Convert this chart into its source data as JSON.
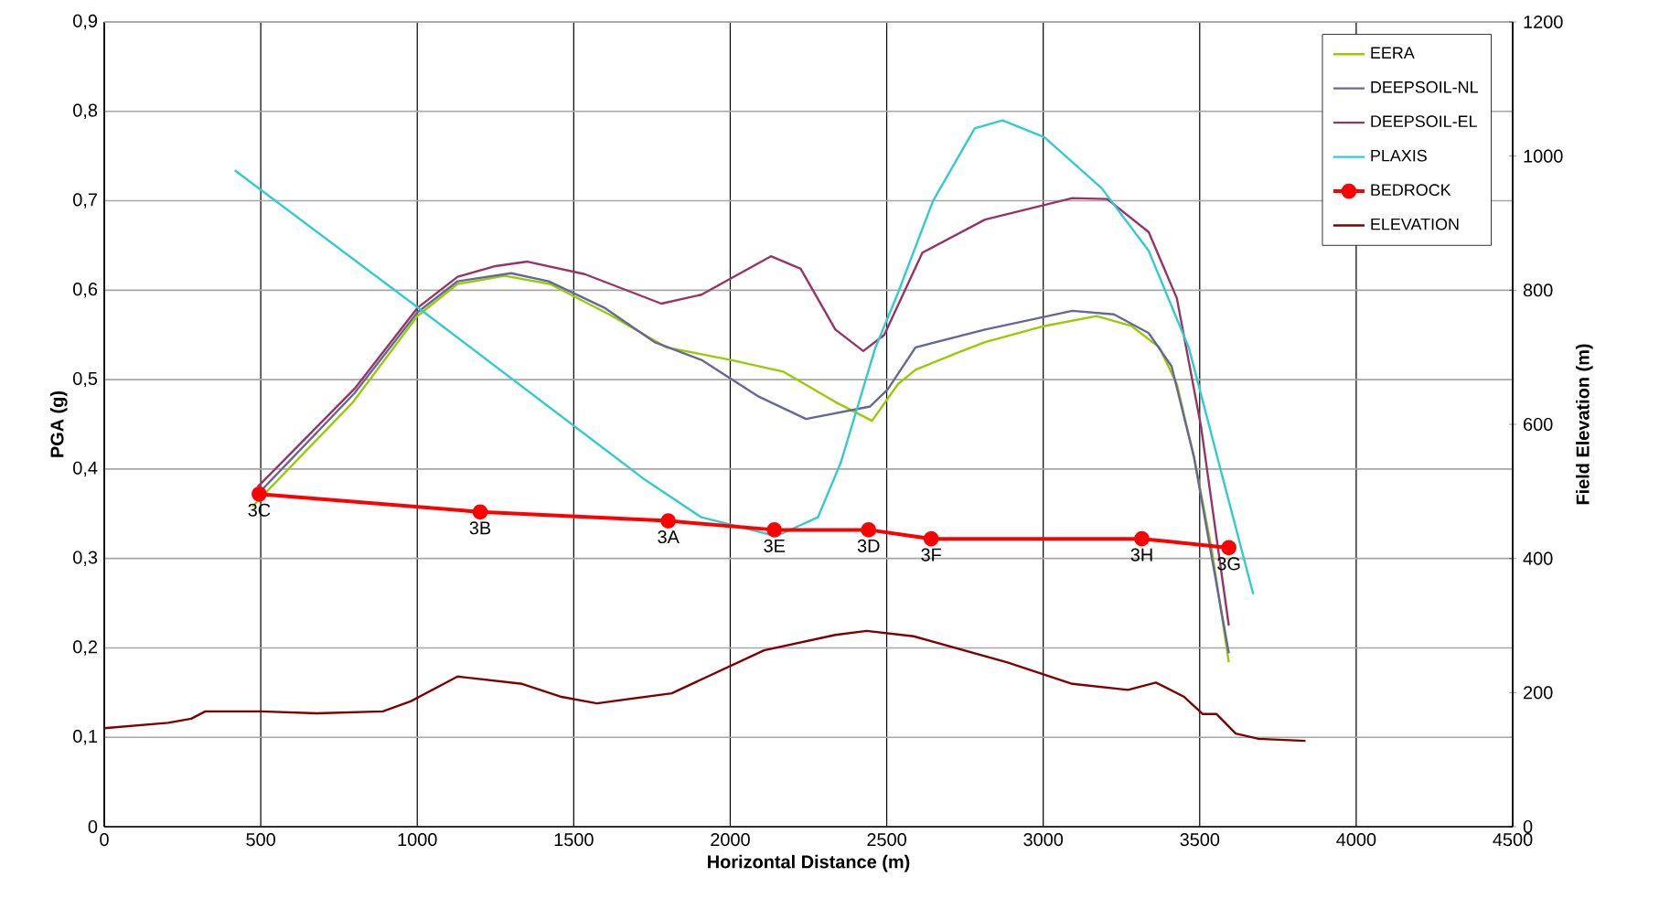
{
  "chart_data": {
    "type": "line",
    "xlabel": "Horizontal Distance (m)",
    "ylabel": "PGA (g)",
    "y2label": "Field Elevation (m)",
    "xlim": [
      0,
      4500
    ],
    "xticks": [
      0,
      500,
      1000,
      1500,
      2000,
      2500,
      3000,
      3500,
      4000,
      4500
    ],
    "ylim": [
      0,
      0.9
    ],
    "yticks": [
      {
        "value": 0,
        "label": "0"
      },
      {
        "value": 0.1,
        "label": "0,1"
      },
      {
        "value": 0.2,
        "label": "0,2"
      },
      {
        "value": 0.3,
        "label": "0,3"
      },
      {
        "value": 0.4,
        "label": "0,4"
      },
      {
        "value": 0.5,
        "label": "0,5"
      },
      {
        "value": 0.6,
        "label": "0,6"
      },
      {
        "value": 0.7,
        "label": "0,7"
      },
      {
        "value": 0.8,
        "label": "0,8"
      },
      {
        "value": 0.9,
        "label": "0,9"
      }
    ],
    "y2lim": [
      0,
      1200
    ],
    "y2ticks": [
      0,
      200,
      400,
      600,
      800,
      1000,
      1200
    ],
    "grid": true,
    "legend": "top right",
    "line_style": "solid",
    "series": [
      {
        "name": "EERA",
        "color": "#99cc00",
        "x": [
          473,
          795,
          1000,
          1129,
          1279,
          1424,
          1613,
          1797,
          2002,
          2169,
          2336,
          2453,
          2536,
          2592,
          2725,
          2814,
          3004,
          3170,
          3282,
          3371,
          3427,
          3482,
          3538,
          3593
        ],
        "values": [
          0.358,
          0.475,
          0.571,
          0.607,
          0.616,
          0.607,
          0.573,
          0.536,
          0.522,
          0.509,
          0.475,
          0.454,
          0.495,
          0.511,
          0.53,
          0.542,
          0.56,
          0.571,
          0.56,
          0.536,
          0.495,
          0.413,
          0.311,
          0.184
        ]
      },
      {
        "name": "DEEPSOIL-NL",
        "color": "#666699",
        "x": [
          485,
          800,
          1000,
          1129,
          1300,
          1420,
          1600,
          1758,
          1908,
          2091,
          2242,
          2447,
          2503,
          2592,
          2814,
          3093,
          3226,
          3337,
          3410,
          3482,
          3593
        ],
        "values": [
          0.37,
          0.485,
          0.575,
          0.61,
          0.619,
          0.61,
          0.58,
          0.542,
          0.522,
          0.481,
          0.456,
          0.47,
          0.489,
          0.536,
          0.556,
          0.577,
          0.573,
          0.552,
          0.515,
          0.413,
          0.194
        ]
      },
      {
        "name": "DEEPSOIL-EL",
        "color": "#993366",
        "x": [
          490,
          800,
          1000,
          1129,
          1250,
          1352,
          1535,
          1780,
          1908,
          2130,
          2225,
          2336,
          2425,
          2492,
          2614,
          2814,
          3093,
          3204,
          3337,
          3427,
          3504,
          3593
        ],
        "values": [
          0.38,
          0.49,
          0.58,
          0.615,
          0.627,
          0.632,
          0.618,
          0.585,
          0.595,
          0.638,
          0.624,
          0.556,
          0.532,
          0.55,
          0.642,
          0.679,
          0.703,
          0.702,
          0.665,
          0.591,
          0.448,
          0.225
        ]
      },
      {
        "name": "PLAXIS",
        "color": "#33cccc",
        "x": [
          417,
          1001,
          1724,
          1908,
          2147,
          2280,
          2353,
          2464,
          2536,
          2648,
          2781,
          2870,
          3004,
          3187,
          3337,
          3465,
          3576,
          3671
        ],
        "values": [
          0.734,
          0.581,
          0.389,
          0.346,
          0.325,
          0.346,
          0.407,
          0.536,
          0.597,
          0.7,
          0.781,
          0.79,
          0.771,
          0.714,
          0.644,
          0.536,
          0.387,
          0.26
        ]
      },
      {
        "name": "BEDROCK",
        "color": "#ff0000",
        "marker": "circle",
        "x": [
          495,
          1201,
          1802,
          2141,
          2442,
          2642,
          3315,
          3593
        ],
        "values": [
          0.372,
          0.352,
          0.342,
          0.332,
          0.332,
          0.322,
          0.322,
          0.312
        ]
      },
      {
        "name": "ELEVATION",
        "color": "#800000",
        "axis": "y2",
        "x": [
          0,
          204,
          278,
          323,
          500,
          679,
          890,
          979,
          1129,
          1335,
          1457,
          1574,
          1813,
          2108,
          2336,
          2436,
          2586,
          2886,
          3093,
          3271,
          3360,
          3449,
          3510,
          3554,
          3615,
          3688,
          3838
        ],
        "values": [
          147,
          155,
          161,
          172,
          172,
          169,
          172,
          187,
          224,
          213,
          194,
          184,
          199,
          263,
          286,
          292,
          284,
          245,
          213,
          204,
          215,
          194,
          168,
          168,
          139,
          131,
          128
        ]
      }
    ],
    "annotations": [
      {
        "text": "3C",
        "x": 495,
        "y": 0.372
      },
      {
        "text": "3B",
        "x": 1201,
        "y": 0.352
      },
      {
        "text": "3A",
        "x": 1802,
        "y": 0.342
      },
      {
        "text": "3E",
        "x": 2141,
        "y": 0.332
      },
      {
        "text": "3D",
        "x": 2442,
        "y": 0.332
      },
      {
        "text": "3F",
        "x": 2642,
        "y": 0.322
      },
      {
        "text": "3H",
        "x": 3315,
        "y": 0.322
      },
      {
        "text": "3G",
        "x": 3593,
        "y": 0.312
      }
    ]
  }
}
